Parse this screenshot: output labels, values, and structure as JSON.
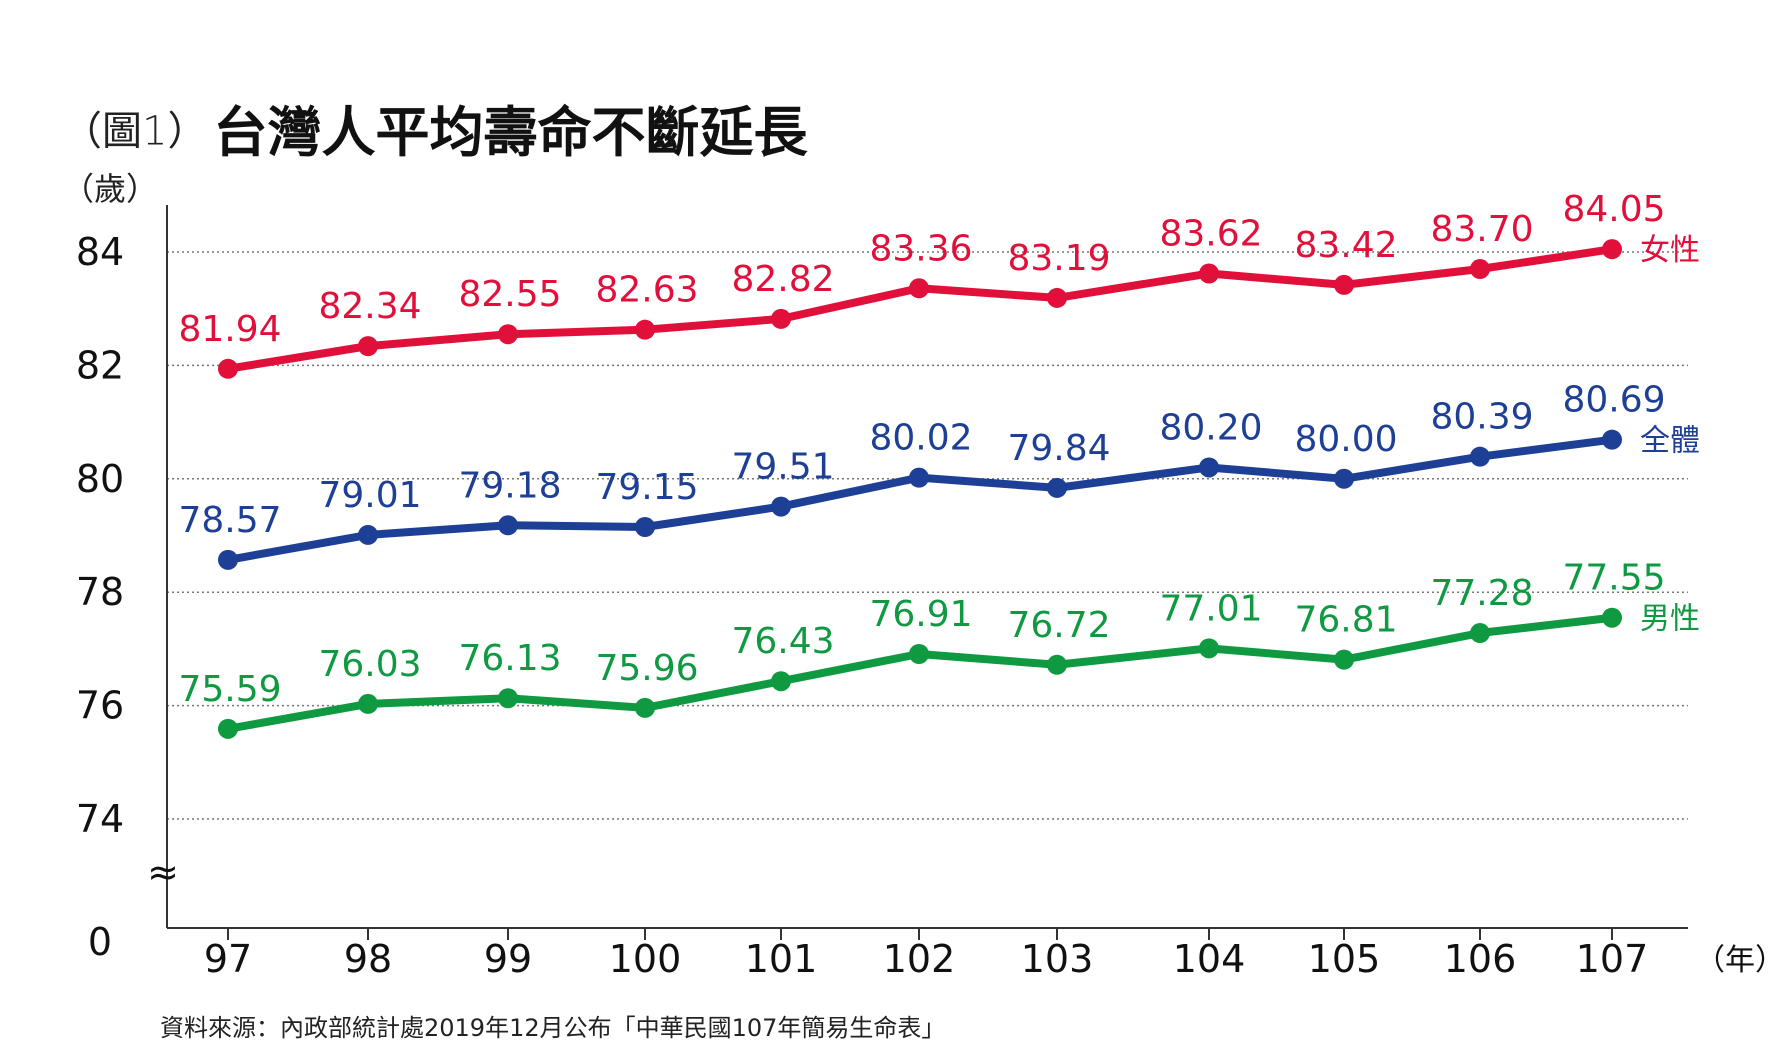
{
  "header": {
    "figure_label": "（圖1）",
    "title": "台灣人平均壽命不斷延長",
    "y_unit": "（歲）",
    "x_unit": "（年）",
    "source": "資料來源：內政部統計處2019年12月公布「中華民國107年簡易生命表」"
  },
  "colors": {
    "female": "#e0103a",
    "total": "#1d3f95",
    "male": "#0f9a42",
    "axis": "#333333",
    "grid": "#777777"
  },
  "chart_data": {
    "type": "line",
    "x": [
      "97",
      "98",
      "99",
      "100",
      "101",
      "102",
      "103",
      "104",
      "105",
      "106",
      "107"
    ],
    "series": [
      {
        "name": "女性",
        "key": "female",
        "values": [
          81.94,
          82.34,
          82.55,
          82.63,
          82.82,
          83.36,
          83.19,
          83.62,
          83.42,
          83.7,
          84.05
        ]
      },
      {
        "name": "全體",
        "key": "total",
        "values": [
          78.57,
          79.01,
          79.18,
          79.15,
          79.51,
          80.02,
          79.84,
          80.2,
          80.0,
          80.39,
          80.69
        ]
      },
      {
        "name": "男性",
        "key": "male",
        "values": [
          75.59,
          76.03,
          76.13,
          75.96,
          76.43,
          76.91,
          76.72,
          77.01,
          76.81,
          77.28,
          77.55
        ]
      }
    ],
    "yticks": [
      "84",
      "82",
      "80",
      "78",
      "76",
      "74",
      "0"
    ],
    "ylim": [
      74,
      84
    ],
    "axis_break": "≈",
    "grid": "dotted horizontal"
  }
}
